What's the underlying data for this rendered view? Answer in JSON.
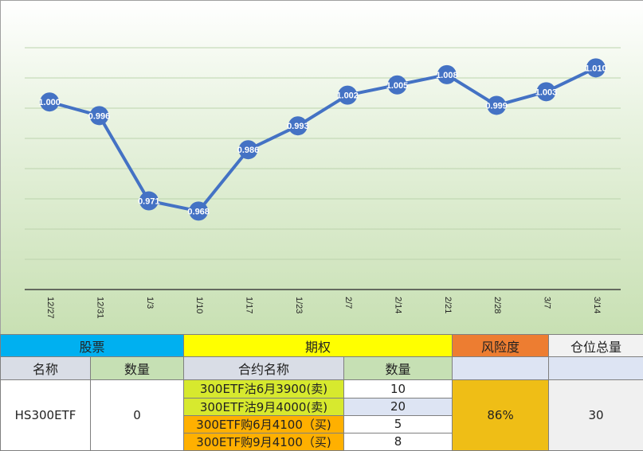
{
  "chart_data": {
    "type": "line",
    "categories": [
      "12/27",
      "12/31",
      "1/3",
      "1/10",
      "1/17",
      "1/23",
      "2/7",
      "2/14",
      "2/21",
      "2/28",
      "3/7",
      "3/14"
    ],
    "values": [
      1.0,
      0.996,
      0.971,
      0.968,
      0.986,
      0.993,
      1.002,
      1.005,
      1.008,
      0.999,
      1.003,
      1.01
    ],
    "data_labels": [
      "1.000",
      "0.996",
      "0.971",
      "0.968",
      "0.986",
      "0.993",
      "1.002",
      "1.005",
      "1.008",
      "0.999",
      "1.003",
      "1.010"
    ],
    "title": "",
    "xlabel": "",
    "ylabel": "",
    "ylim": [
      0.945,
      1.025
    ],
    "grid": true,
    "line_color": "#4472c4",
    "marker_color": "#4472c4"
  },
  "table": {
    "stock_header": "股票",
    "option_header": "期权",
    "risk_header": "风险度",
    "total_header": "仓位总量",
    "col_name": "名称",
    "col_qty": "数量",
    "col_contract": "合约名称",
    "col_contract_qty": "数量",
    "stock_name": "HS300ETF",
    "stock_qty": "0",
    "contracts": [
      {
        "name": "300ETF沽6月3900(卖)",
        "qty": "10"
      },
      {
        "name": "300ETF沽9月4000(卖)",
        "qty": "20"
      },
      {
        "name": "300ETF购6月4100（买)",
        "qty": "5"
      },
      {
        "name": "300ETF购9月4100（买)",
        "qty": "8"
      }
    ],
    "risk_value": "86%",
    "total_value": "30"
  }
}
